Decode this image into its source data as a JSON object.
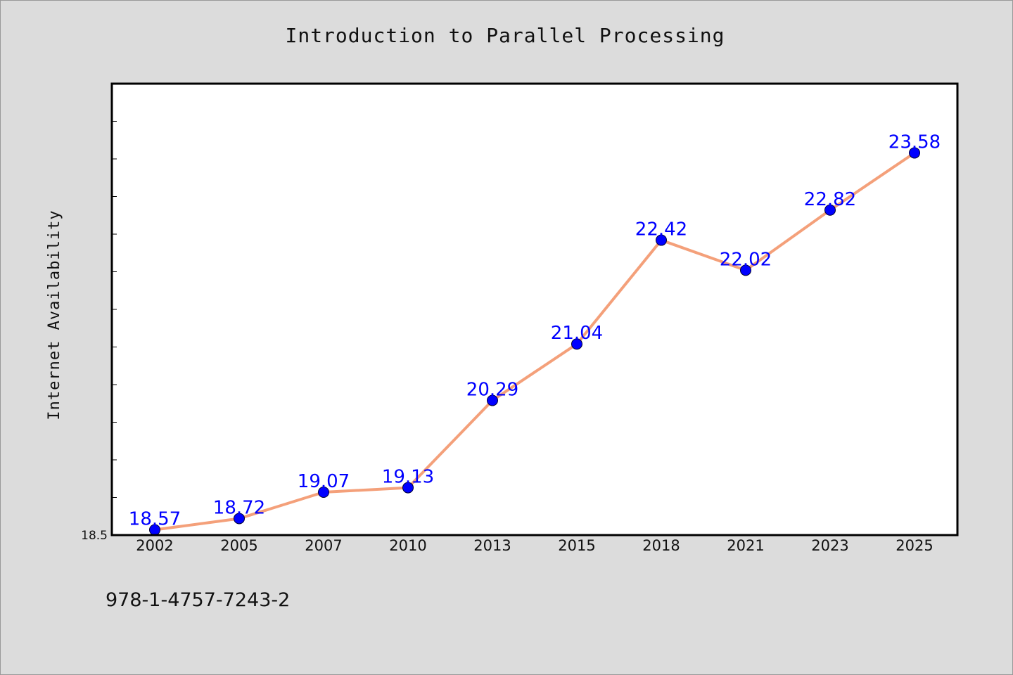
{
  "chart_data": {
    "type": "line",
    "title": "Introduction to Parallel Processing",
    "xlabel": "",
    "ylabel": "Internet Availability",
    "categories": [
      "2002",
      "2005",
      "2007",
      "2010",
      "2013",
      "2015",
      "2018",
      "2021",
      "2023",
      "2025"
    ],
    "series": [
      {
        "values": [
          18.57,
          18.72,
          19.07,
          19.13,
          20.29,
          21.04,
          22.42,
          22.02,
          22.82,
          23.58
        ],
        "data_labels": [
          "18.57",
          "18.72",
          "19.07",
          "19.13",
          "20.29",
          "21.04",
          "22.42",
          "22.02",
          "22.82",
          "23.58"
        ]
      }
    ],
    "ylim": [
      18.5,
      24.5
    ],
    "y_tick_labels": [
      "18.5"
    ],
    "grid": false,
    "legend": "none",
    "colors": {
      "line": "#f4a07a",
      "marker": "#0000ff",
      "data_label": "#0000ff",
      "background": "#dcdcdc",
      "plot_background": "#ffffff"
    },
    "footer": "978-1-4757-7243-2"
  }
}
